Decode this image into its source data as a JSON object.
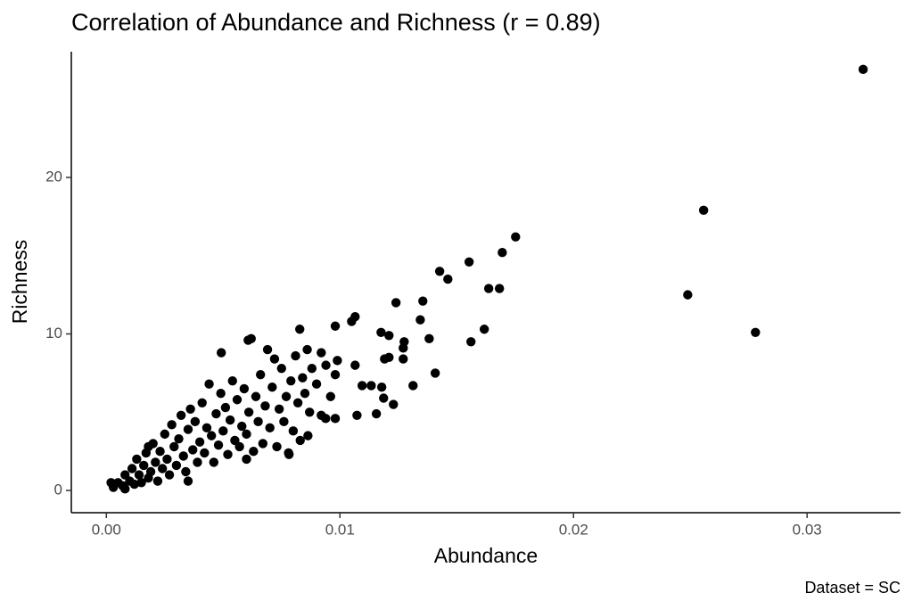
{
  "chart_data": {
    "type": "scatter",
    "title": "Correlation of Abundance and Richness (r = 0.89)",
    "x_label": "Abundance",
    "y_label": "Richness",
    "caption": "Dataset = SC",
    "color": "#000000",
    "xlim": [
      -0.0015,
      0.034
    ],
    "ylim": [
      -1.42,
      28.03
    ],
    "xticks": [
      {
        "value": 0,
        "label": "0.00"
      },
      0.01,
      0.02,
      0.03
    ],
    "yticks": [
      0,
      10,
      20
    ],
    "x": [
      0.0324,
      0.02557,
      0.02489,
      0.02779,
      0.01752,
      0.01695,
      0.01553,
      0.01427,
      0.01462,
      0.01637,
      0.01683,
      0.01355,
      0.0124,
      0.01344,
      0.01618,
      0.01561,
      0.01382,
      0.01065,
      0.0105,
      0.0098,
      0.00828,
      0.00607,
      0.00492,
      0.01176,
      0.0121,
      0.01275,
      0.01271,
      0.0121,
      0.01191,
      0.01271,
      0.01408,
      0.01313,
      0.01095,
      0.01179,
      0.01134,
      0.01187,
      0.01229,
      0.01073,
      0.01156,
      0.0098,
      0.00939,
      0.01065,
      0.00989,
      0.0092,
      0.00863,
      0.00782,
      0.0003,
      0.0005,
      0.0007,
      0.0008,
      0.001,
      0.0011,
      0.0012,
      0.0013,
      0.0014,
      0.0015,
      0.0016,
      0.0017,
      0.0018,
      0.0019,
      0.002,
      0.0021,
      0.0022,
      0.0023,
      0.0024,
      0.0025,
      0.0026,
      0.0027,
      0.0028,
      0.0029,
      0.003,
      0.0031,
      0.0032,
      0.0033,
      0.0034,
      0.0035,
      0.0036,
      0.0037,
      0.0038,
      0.0039,
      0.004,
      0.0041,
      0.0042,
      0.0043,
      0.0044,
      0.0045,
      0.0046,
      0.0047,
      0.0048,
      0.0049,
      0.005,
      0.0051,
      0.0052,
      0.0053,
      0.0054,
      0.0055,
      0.0056,
      0.0057,
      0.0058,
      0.0059,
      0.006,
      0.0061,
      0.0062,
      0.0063,
      0.0064,
      0.0065,
      0.0066,
      0.0067,
      0.0068,
      0.0069,
      0.007,
      0.0071,
      0.0072,
      0.0073,
      0.0074,
      0.0075,
      0.0076,
      0.0077,
      0.0078,
      0.0079,
      0.008,
      0.0081,
      0.0082,
      0.0083,
      0.0084,
      0.0085,
      0.0086,
      0.0087,
      0.0088,
      0.009,
      0.0092,
      0.0094,
      0.0096,
      0.0098,
      0.0008,
      0.0035,
      0.006,
      0.0002,
      0.0018
    ],
    "y": [
      26.9,
      17.9,
      12.5,
      10.1,
      16.2,
      15.2,
      14.6,
      14.0,
      13.5,
      12.9,
      12.9,
      12.1,
      12.0,
      10.9,
      10.3,
      9.5,
      9.7,
      11.1,
      10.8,
      10.5,
      10.3,
      9.6,
      8.8,
      10.1,
      9.9,
      9.5,
      9.1,
      8.5,
      8.4,
      8.4,
      7.5,
      6.7,
      6.7,
      6.6,
      6.7,
      5.9,
      5.5,
      4.8,
      4.9,
      4.6,
      4.6,
      8.0,
      8.3,
      8.8,
      3.5,
      2.3,
      0.2,
      0.5,
      0.3,
      1.0,
      0.6,
      1.4,
      0.4,
      2.0,
      1.0,
      0.5,
      1.6,
      2.4,
      0.8,
      1.2,
      3.0,
      1.8,
      0.6,
      2.5,
      1.4,
      3.6,
      2.0,
      1.0,
      4.2,
      2.8,
      1.6,
      3.3,
      4.8,
      2.2,
      1.2,
      3.9,
      5.2,
      2.6,
      4.4,
      1.8,
      3.1,
      5.6,
      2.4,
      4.0,
      6.8,
      3.5,
      1.8,
      4.9,
      2.9,
      6.2,
      3.8,
      5.3,
      2.3,
      4.5,
      7.0,
      3.2,
      5.8,
      2.8,
      4.1,
      6.5,
      3.6,
      5.0,
      9.7,
      2.5,
      6.0,
      4.4,
      7.4,
      3.0,
      5.4,
      9.0,
      4.0,
      6.6,
      8.4,
      2.8,
      5.2,
      7.8,
      4.4,
      6.0,
      2.4,
      7.0,
      3.8,
      8.6,
      5.6,
      3.2,
      7.2,
      6.2,
      9.0,
      5.0,
      7.8,
      6.8,
      4.8,
      8.0,
      6.0,
      7.4,
      0.1,
      0.6,
      2.0,
      0.5,
      2.8
    ]
  }
}
